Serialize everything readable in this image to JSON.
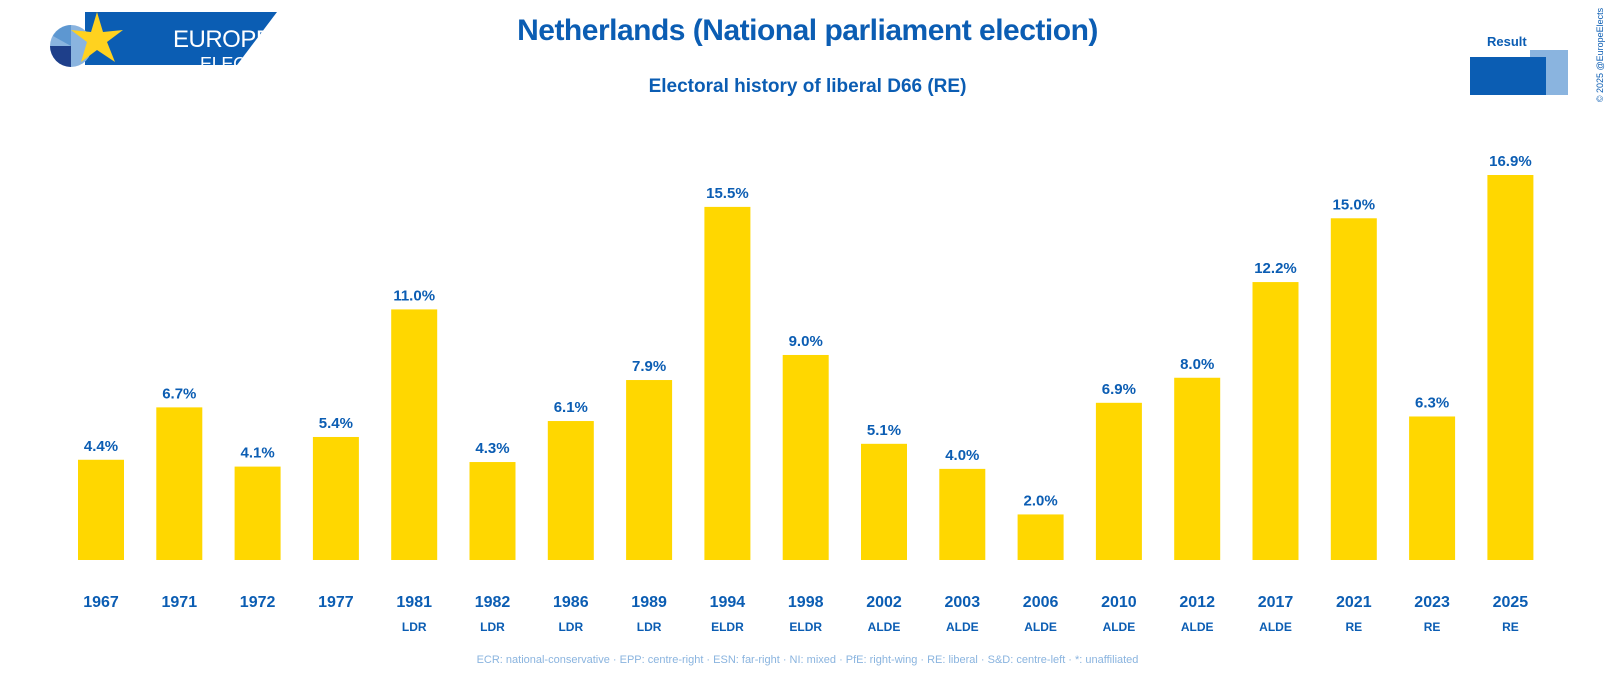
{
  "logo": {
    "line1": "EUROPE",
    "line2": "ELECTS"
  },
  "header": {
    "title": "Netherlands (National parliament election)",
    "subtitle": "Electoral history of liberal D66 (RE)"
  },
  "legend": {
    "label": "Result"
  },
  "copyright": "© 2025 @EuropeElects",
  "footnote": "ECR: national-conservative · EPP: centre-right · ESN: far-right · NI: mixed · PfE: right-wing · RE: liberal · S&D: centre-left · *: unaffiliated",
  "colors": {
    "bar": "#ffd700",
    "text": "#0b5db3",
    "legend_light": "#8ab4df",
    "logo_bg": "#0b5db3",
    "star": "#ffd21f"
  },
  "chart_data": {
    "type": "bar",
    "title": "Netherlands (National parliament election)",
    "subtitle": "Electoral history of liberal D66 (RE)",
    "categories": [
      "1967",
      "1971",
      "1972",
      "1977",
      "1981",
      "1982",
      "1986",
      "1989",
      "1994",
      "1998",
      "2002",
      "2003",
      "2006",
      "2010",
      "2012",
      "2017",
      "2021",
      "2023",
      "2025"
    ],
    "groups": [
      "",
      "",
      "",
      "",
      "LDR",
      "LDR",
      "LDR",
      "LDR",
      "ELDR",
      "ELDR",
      "ALDE",
      "ALDE",
      "ALDE",
      "ALDE",
      "ALDE",
      "ALDE",
      "RE",
      "RE",
      "RE"
    ],
    "values": [
      4.4,
      6.7,
      4.1,
      5.4,
      11.0,
      4.3,
      6.1,
      7.9,
      15.5,
      9.0,
      5.1,
      4.0,
      2.0,
      6.9,
      8.0,
      12.2,
      15.0,
      6.3,
      16.9
    ],
    "value_labels": [
      "4.4%",
      "6.7%",
      "4.1%",
      "5.4%",
      "11.0%",
      "4.3%",
      "6.1%",
      "7.9%",
      "15.5%",
      "9.0%",
      "5.1%",
      "4.0%",
      "2.0%",
      "6.9%",
      "8.0%",
      "12.2%",
      "15.0%",
      "6.3%",
      "16.9%"
    ],
    "series_name": "Result",
    "ylim": [
      0,
      16.9
    ],
    "unit": "%",
    "grid": false
  }
}
